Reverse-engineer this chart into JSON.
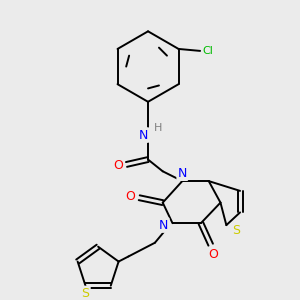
{
  "background_color": "#ebebeb",
  "bond_color": "#000000",
  "atom_colors": {
    "N": "#0000ff",
    "O": "#ff0000",
    "S": "#cccc00",
    "Cl": "#00bb00",
    "H": "#808080"
  },
  "figsize": [
    3.0,
    3.0
  ],
  "dpi": 100
}
